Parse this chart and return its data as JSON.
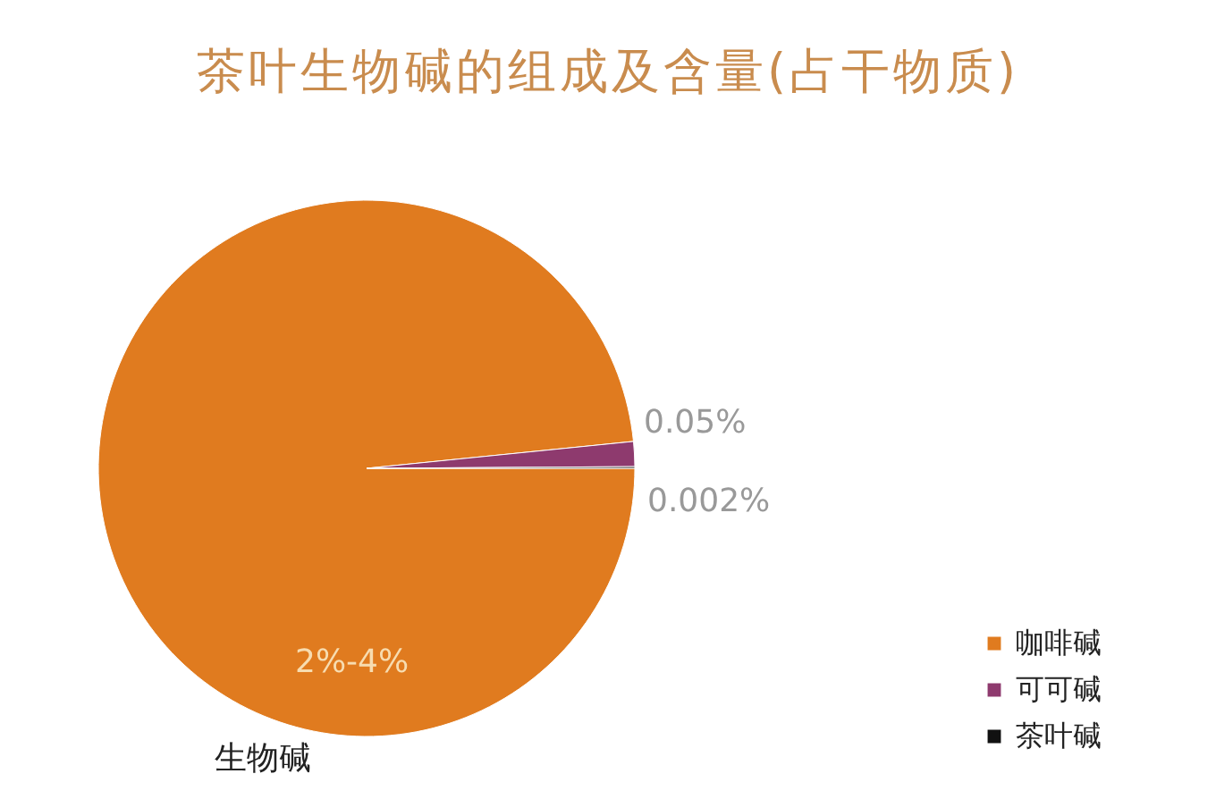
{
  "chart_data": {
    "type": "pie",
    "title": "茶叶生物碱的组成及含量(占干物质)",
    "categories": [
      "咖啡碱",
      "可可碱",
      "茶叶碱"
    ],
    "values": [
      98.4,
      1.5,
      0.1
    ],
    "colors": [
      "#e07b1f",
      "#8e3a6e",
      "#111111"
    ],
    "annotations": [
      "0.05%",
      "0.002%",
      "2%-4%",
      "生物碱"
    ],
    "legend": "bottom right"
  }
}
